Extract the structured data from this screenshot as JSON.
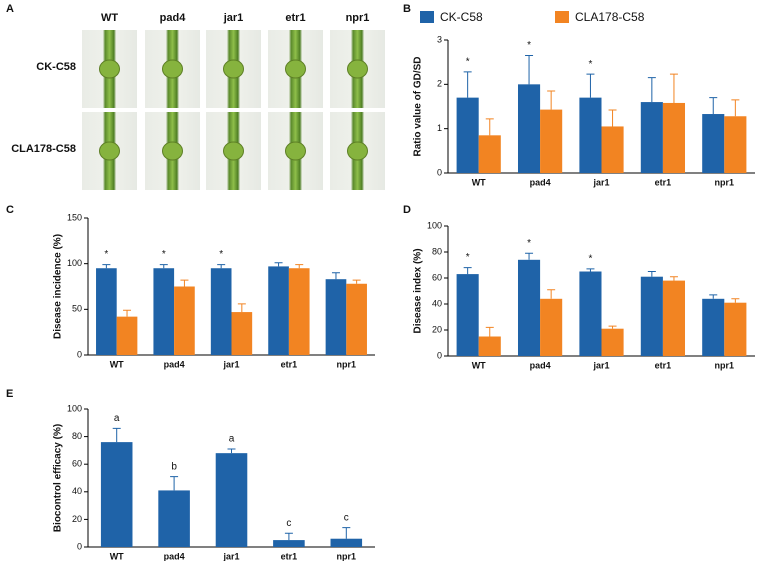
{
  "figure_a": {
    "panel_label": "A",
    "columns": [
      "WT",
      "pad4",
      "jar1",
      "etr1",
      "npr1"
    ],
    "rows": [
      "CK-C58",
      "CLA178-C58"
    ]
  },
  "chart_data": [
    {
      "type": "bar",
      "panel_label": "B",
      "y_label": "Ratio value of GD/SD",
      "categories": [
        "WT",
        "pad4",
        "jar1",
        "etr1",
        "npr1"
      ],
      "series": [
        {
          "name": "CK-C58",
          "color": "#1f63a8",
          "values": [
            1.7,
            2.0,
            1.7,
            1.6,
            1.33
          ],
          "errors": [
            0.58,
            0.65,
            0.53,
            0.55,
            0.37
          ]
        },
        {
          "name": "CLA178-C58",
          "color": "#f28422",
          "values": [
            0.85,
            1.43,
            1.05,
            1.58,
            1.28
          ],
          "errors": [
            0.37,
            0.42,
            0.37,
            0.65,
            0.37
          ]
        }
      ],
      "annotations": [
        "*",
        "*",
        "*",
        null,
        null
      ],
      "ylim": [
        0,
        3
      ],
      "yticks": [
        0,
        1,
        2,
        3
      ],
      "legend": "top"
    },
    {
      "type": "bar",
      "panel_label": "C",
      "y_label": "Disease incidence (%)",
      "categories": [
        "WT",
        "pad4",
        "jar1",
        "etr1",
        "npr1"
      ],
      "series": [
        {
          "color": "#1f63a8",
          "values": [
            95,
            95,
            95,
            97,
            83
          ],
          "errors": [
            4,
            4,
            4,
            4,
            7
          ]
        },
        {
          "color": "#f28422",
          "values": [
            42,
            75,
            47,
            95,
            78
          ],
          "errors": [
            7,
            7,
            9,
            4,
            4
          ]
        }
      ],
      "annotations": [
        "*",
        "*",
        "*",
        null,
        null
      ],
      "ylim": [
        0,
        150
      ],
      "yticks": [
        0,
        50,
        100,
        150
      ]
    },
    {
      "type": "bar",
      "panel_label": "D",
      "y_label": "Disease index (%)",
      "categories": [
        "WT",
        "pad4",
        "jar1",
        "etr1",
        "npr1"
      ],
      "series": [
        {
          "color": "#1f63a8",
          "values": [
            63,
            74,
            65,
            61,
            44
          ],
          "errors": [
            5,
            5,
            2,
            4,
            3
          ]
        },
        {
          "color": "#f28422",
          "values": [
            15,
            44,
            21,
            58,
            41
          ],
          "errors": [
            7,
            7,
            2,
            3,
            3
          ]
        }
      ],
      "annotations": [
        "*",
        "*",
        "*",
        null,
        null
      ],
      "ylim": [
        0,
        100
      ],
      "yticks": [
        0,
        20,
        40,
        60,
        80,
        100
      ]
    },
    {
      "type": "bar",
      "panel_label": "E",
      "y_label": "Biocontrol efficacy (%)",
      "categories": [
        "WT",
        "pad4",
        "jar1",
        "etr1",
        "npr1"
      ],
      "series": [
        {
          "color": "#1f63a8",
          "values": [
            76,
            41,
            68,
            5,
            6
          ],
          "errors": [
            10,
            10,
            3,
            5,
            8
          ]
        }
      ],
      "annotations": [
        "a",
        "b",
        "a",
        "c",
        "c"
      ],
      "ylim": [
        0,
        100
      ],
      "yticks": [
        0,
        20,
        40,
        60,
        80,
        100
      ]
    }
  ]
}
